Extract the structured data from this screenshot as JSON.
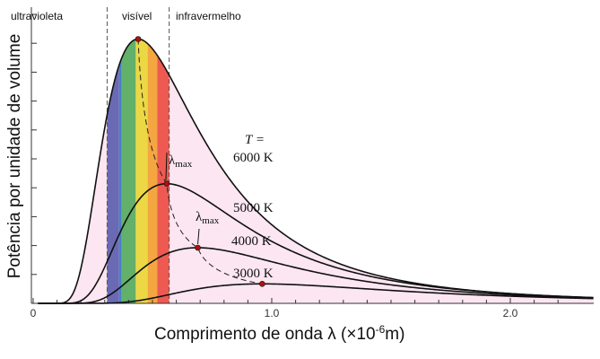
{
  "chart_data": {
    "type": "line",
    "title": "",
    "xlabel": "Comprimento de onda λ (×10",
    "xlabel_exp": "-6",
    "xlabel_unit": "m)",
    "ylabel": "Potência por unidade de volume",
    "xlim": [
      0,
      2.35
    ],
    "ylim": [
      0,
      1.0
    ],
    "x_ticks": [
      {
        "value": 0,
        "label": "0"
      },
      {
        "value": 1.0,
        "label": "1.0"
      },
      {
        "value": 2.0,
        "label": "2.0"
      }
    ],
    "regions": [
      {
        "label": "ultravioleta"
      },
      {
        "label": "visível"
      },
      {
        "label": "infravermelho"
      }
    ],
    "region_bounds_um": [
      0.31,
      0.57
    ],
    "temperature_header": "T =",
    "series": [
      {
        "name": "6000 K",
        "temperature_K": 6000,
        "peak_x": 0.44,
        "peak_y": 0.95
      },
      {
        "name": "5000 K",
        "temperature_K": 5000,
        "peak_x": 0.56,
        "peak_y": 0.43
      },
      {
        "name": "4000 K",
        "temperature_K": 4000,
        "peak_x": 0.69,
        "peak_y": 0.2
      },
      {
        "name": "3000 K",
        "temperature_K": 3000,
        "peak_x": 0.96,
        "peak_y": 0.07
      }
    ],
    "lambda_max_label": "λ",
    "lambda_max_sub": "max",
    "spectrum_colors": [
      "#6a6ab4",
      "#4a7ec8",
      "#62b06a",
      "#ecd844",
      "#f4a640",
      "#ee5a52"
    ],
    "fill_color": "#fbe6f1",
    "marker_color": "#b01010"
  }
}
